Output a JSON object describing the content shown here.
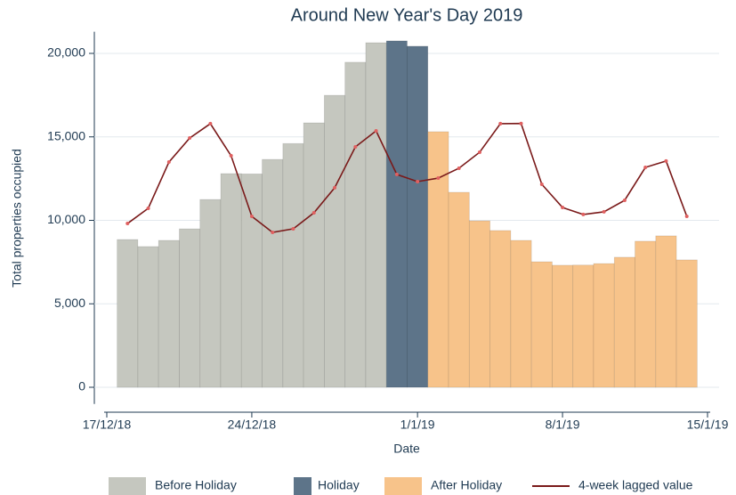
{
  "chart_data": {
    "type": "bar",
    "title": "Around New Year's Day 2019",
    "x_label": "Date",
    "y_label": "Total properties occupied",
    "x": [
      "2018-12-18",
      "2018-12-19",
      "2018-12-20",
      "2018-12-21",
      "2018-12-22",
      "2018-12-23",
      "2018-12-24",
      "2018-12-25",
      "2018-12-26",
      "2018-12-27",
      "2018-12-28",
      "2018-12-29",
      "2018-12-30",
      "2018-12-31",
      "2019-01-01",
      "2019-01-02",
      "2019-01-03",
      "2019-01-04",
      "2019-01-05",
      "2019-01-06",
      "2019-01-07",
      "2019-01-08",
      "2019-01-09",
      "2019-01-10",
      "2019-01-11",
      "2019-01-12",
      "2019-01-13",
      "2019-01-14"
    ],
    "series": [
      {
        "name": "Before Holiday",
        "type": "bar",
        "color": "#c5c7bf",
        "values": [
          8850,
          8430,
          8800,
          9490,
          11250,
          12800,
          12780,
          13650,
          14600,
          15840,
          17490,
          19470,
          20640,
          null,
          null,
          null,
          null,
          null,
          null,
          null,
          null,
          null,
          null,
          null,
          null,
          null,
          null,
          null
        ]
      },
      {
        "name": "Holiday",
        "type": "bar",
        "color": "#5d7489",
        "values": [
          null,
          null,
          null,
          null,
          null,
          null,
          null,
          null,
          null,
          null,
          null,
          null,
          null,
          20750,
          20430,
          null,
          null,
          null,
          null,
          null,
          null,
          null,
          null,
          null,
          null,
          null,
          null,
          null
        ]
      },
      {
        "name": "After Holiday",
        "type": "bar",
        "color": "#f7c38a",
        "values": [
          null,
          null,
          null,
          null,
          null,
          null,
          null,
          null,
          null,
          null,
          null,
          null,
          null,
          null,
          null,
          15310,
          11680,
          9970,
          9390,
          8800,
          7520,
          7310,
          7320,
          7410,
          7790,
          8750,
          9070,
          7630
        ]
      },
      {
        "name": "4-week lagged value",
        "type": "line",
        "color": "#7a1a1a",
        "marker_color": "#e06060",
        "values": [
          9810,
          10720,
          13490,
          14930,
          15790,
          13870,
          10240,
          9280,
          9490,
          10450,
          11950,
          14400,
          15360,
          12750,
          12320,
          12530,
          13120,
          14080,
          15790,
          15800,
          12160,
          10770,
          10350,
          10510,
          11200,
          13170,
          13550,
          10240
        ]
      }
    ],
    "xlim": [
      "2018-12-17",
      "2019-01-15"
    ],
    "xticks": [
      {
        "value": "2018-12-17",
        "label": "17/12/18"
      },
      {
        "value": "2018-12-24",
        "label": "24/12/18"
      },
      {
        "value": "2019-01-01",
        "label": "1/1/19"
      },
      {
        "value": "2019-01-08",
        "label": "8/1/19"
      },
      {
        "value": "2019-01-15",
        "label": "15/1/19"
      }
    ],
    "ylim": [
      -1000,
      21300
    ],
    "yticks": [
      0,
      {
        "value": 5000,
        "label": "5,000"
      },
      {
        "value": 10000,
        "label": "10,000"
      },
      {
        "value": 15000,
        "label": "15,000"
      },
      {
        "value": 20000,
        "label": "20,000"
      }
    ],
    "grid": true,
    "legend": "bottom"
  }
}
